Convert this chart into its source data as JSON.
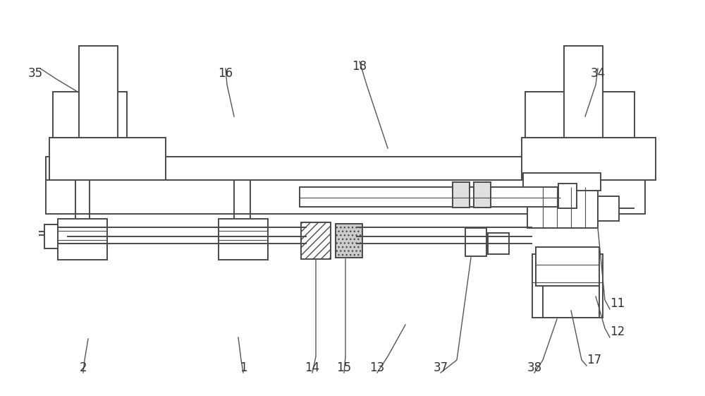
{
  "bg_color": "#ffffff",
  "line_color": "#4a4a4a",
  "lw": 1.4,
  "figsize": [
    10.0,
    5.61
  ],
  "dpi": 100
}
